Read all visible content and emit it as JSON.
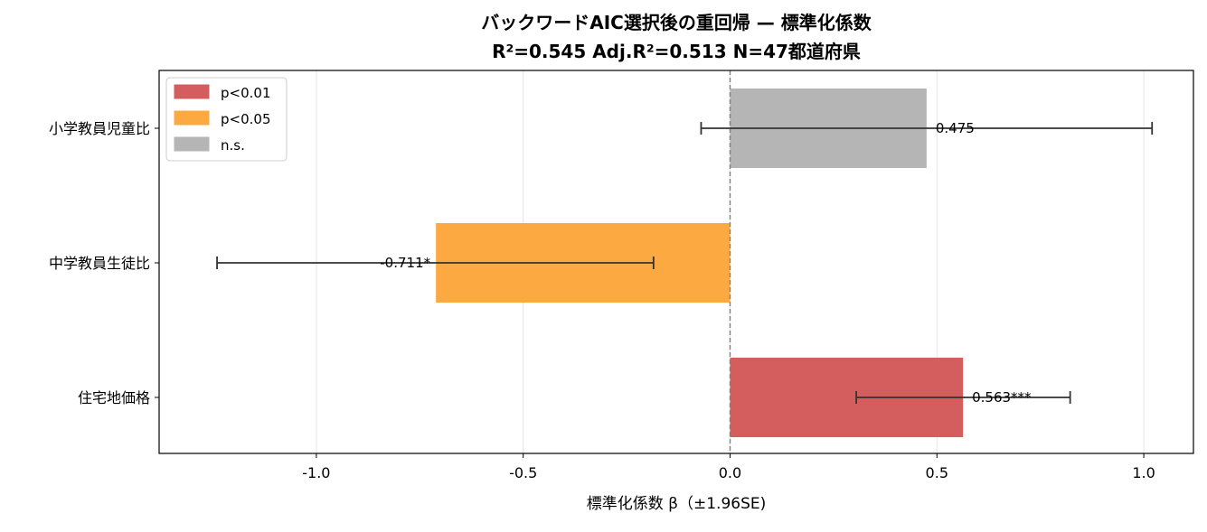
{
  "chart_data": {
    "type": "bar",
    "orientation": "horizontal",
    "title": "バックワードAIC選択後の重回帰 — 標準化係数",
    "subtitle": "R²=0.545  Adj.R²=0.513  N=47都道府県",
    "xlabel": "標準化係数 β（±1.96SE)",
    "ylabel": "",
    "xlim": [
      -1.38,
      1.12
    ],
    "xticks": [
      -1.0,
      -0.5,
      0.0,
      0.5,
      1.0
    ],
    "xtick_labels": [
      "-1.0",
      "-0.5",
      "0.0",
      "0.5",
      "1.0"
    ],
    "grid": "vertical",
    "zero_line": true,
    "categories": [
      "小学教員児童比",
      "中学教員生徒比",
      "住宅地価格"
    ],
    "values": [
      0.475,
      -0.711,
      0.563
    ],
    "ci_low": [
      -0.07,
      -1.24,
      0.305
    ],
    "ci_high": [
      1.02,
      -0.185,
      0.822
    ],
    "significance": [
      "n.s.",
      "p<0.05",
      "p<0.01"
    ],
    "value_labels": [
      "0.475",
      "-0.711*",
      "0.563***"
    ],
    "legend": {
      "placement": "top-left",
      "entries": [
        {
          "label": "p<0.01",
          "color": "#d45d5d"
        },
        {
          "label": "p<0.05",
          "color": "#fda941"
        },
        {
          "label": "n.s.",
          "color": "#b5b5b5"
        }
      ]
    },
    "colors": {
      "p<0.01": "#d45d5d",
      "p<0.05": "#fda941",
      "n.s.": "#b5b5b5",
      "errorbar": "#333333",
      "grid": "#e6e6e6",
      "zero_line": "#808080"
    }
  }
}
